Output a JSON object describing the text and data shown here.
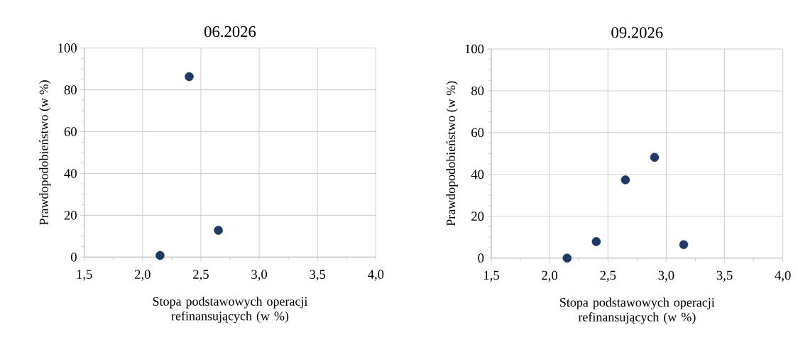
{
  "chart_data": [
    {
      "type": "scatter",
      "title": "06.2026",
      "xlabel": "Stopa podstawowych operacji refinansujących (w %)",
      "ylabel": "Prawdopodobieństwo (w %)",
      "x": [
        2.15,
        2.4,
        2.65
      ],
      "series": [
        {
          "color": "#1f3864",
          "values": [
            0.8,
            86.3,
            12.8
          ]
        }
      ],
      "xlim": [
        1.5,
        4.0
      ],
      "ylim": [
        0,
        100
      ],
      "xticks": [
        {
          "value": 1.5,
          "label": "1,5"
        },
        {
          "value": 2.0,
          "label": "2,0"
        },
        {
          "value": 2.5,
          "label": "2,5"
        },
        {
          "value": 3.0,
          "label": "3,0"
        },
        {
          "value": 3.5,
          "label": "3,5"
        },
        {
          "value": 4.0,
          "label": "4,0"
        }
      ],
      "yticks": [
        0,
        20,
        40,
        60,
        80,
        100
      ],
      "grid": true,
      "marker": "circle"
    },
    {
      "type": "scatter",
      "title": "09.2026",
      "xlabel": "Stopa podstawowych operacji refinansujących (w %)",
      "ylabel": "Prawdopodobieństwo (w %)",
      "x": [
        2.15,
        2.4,
        2.65,
        2.9,
        3.15
      ],
      "series": [
        {
          "color": "#1f3864",
          "values": [
            0,
            7.9,
            37.4,
            48.2,
            6.4
          ]
        }
      ],
      "xlim": [
        1.5,
        4.0
      ],
      "ylim": [
        0,
        100
      ],
      "xticks": [
        {
          "value": 1.5,
          "label": "1,5"
        },
        {
          "value": 2.0,
          "label": "2,0"
        },
        {
          "value": 2.5,
          "label": "2,5"
        },
        {
          "value": 3.0,
          "label": "3,0"
        },
        {
          "value": 3.5,
          "label": "3,5"
        },
        {
          "value": 4.0,
          "label": "4,0"
        }
      ],
      "yticks": [
        0,
        20,
        40,
        60,
        80,
        100
      ],
      "grid": true,
      "marker": "circle"
    }
  ]
}
